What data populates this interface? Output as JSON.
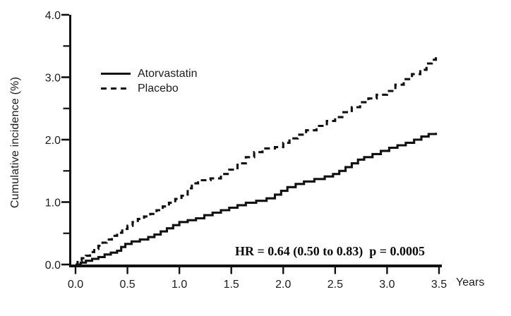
{
  "figure": {
    "y_axis_label": "Cumulative incidence (%)",
    "x_axis_unit": "Years",
    "annotation": "HR = 0.64 (0.50 to 0.83)  p = 0.0005",
    "legend": [
      {
        "label": "Atorvastatin",
        "style": "solid"
      },
      {
        "label": "Placebo",
        "style": "dashed"
      }
    ],
    "colors": {
      "line": "#111111",
      "text": "#1c1c1c",
      "background": "#ffffff"
    }
  },
  "chart_data": {
    "type": "line",
    "subtype": "step-cumulative-incidence",
    "title": "",
    "xlabel": "Years",
    "ylabel": "Cumulative incidence (%)",
    "xlim": [
      0,
      3.5
    ],
    "ylim": [
      0,
      4.0
    ],
    "grid": false,
    "legend_position": "upper-left-inside",
    "annotation": "HR = 0.64 (0.50 to 0.83)  p = 0.0005",
    "x_ticks": [
      [
        0,
        "0.0"
      ],
      [
        0.5,
        "0.5"
      ],
      [
        1,
        "1.0"
      ],
      [
        1.5,
        "1.5"
      ],
      [
        2,
        "2.0"
      ],
      [
        2.5,
        "2.5"
      ],
      [
        3,
        "3.0"
      ],
      [
        3.5,
        "3.5"
      ]
    ],
    "y_ticks": [
      [
        0,
        "0.0"
      ],
      [
        1,
        "1.0"
      ],
      [
        2,
        "2.0"
      ],
      [
        3,
        "3.0"
      ],
      [
        4,
        "4.0"
      ]
    ],
    "y_minor_ticks": [
      0.5,
      1.5,
      2.5,
      3.5
    ],
    "series": [
      {
        "name": "Atorvastatin",
        "style": "solid",
        "points": [
          [
            0.0,
            0.0
          ],
          [
            0.05,
            0.03
          ],
          [
            0.1,
            0.06
          ],
          [
            0.16,
            0.09
          ],
          [
            0.22,
            0.12
          ],
          [
            0.28,
            0.16
          ],
          [
            0.34,
            0.19
          ],
          [
            0.4,
            0.22
          ],
          [
            0.44,
            0.28
          ],
          [
            0.48,
            0.33
          ],
          [
            0.54,
            0.37
          ],
          [
            0.62,
            0.4
          ],
          [
            0.7,
            0.44
          ],
          [
            0.76,
            0.48
          ],
          [
            0.82,
            0.53
          ],
          [
            0.88,
            0.58
          ],
          [
            0.94,
            0.63
          ],
          [
            1.0,
            0.68
          ],
          [
            1.08,
            0.71
          ],
          [
            1.16,
            0.74
          ],
          [
            1.24,
            0.79
          ],
          [
            1.32,
            0.83
          ],
          [
            1.4,
            0.87
          ],
          [
            1.48,
            0.91
          ],
          [
            1.56,
            0.95
          ],
          [
            1.64,
            0.99
          ],
          [
            1.74,
            1.02
          ],
          [
            1.84,
            1.06
          ],
          [
            1.92,
            1.12
          ],
          [
            1.98,
            1.18
          ],
          [
            2.04,
            1.24
          ],
          [
            2.12,
            1.29
          ],
          [
            2.2,
            1.33
          ],
          [
            2.3,
            1.37
          ],
          [
            2.4,
            1.41
          ],
          [
            2.48,
            1.45
          ],
          [
            2.54,
            1.5
          ],
          [
            2.6,
            1.56
          ],
          [
            2.66,
            1.62
          ],
          [
            2.72,
            1.68
          ],
          [
            2.78,
            1.72
          ],
          [
            2.86,
            1.77
          ],
          [
            2.94,
            1.82
          ],
          [
            3.02,
            1.87
          ],
          [
            3.1,
            1.91
          ],
          [
            3.18,
            1.95
          ],
          [
            3.26,
            2.0
          ],
          [
            3.33,
            2.05
          ],
          [
            3.4,
            2.09
          ],
          [
            3.47,
            2.11
          ]
        ]
      },
      {
        "name": "Placebo",
        "style": "dashed",
        "points": [
          [
            0.0,
            0.0
          ],
          [
            0.02,
            0.06
          ],
          [
            0.06,
            0.1
          ],
          [
            0.1,
            0.14
          ],
          [
            0.14,
            0.2
          ],
          [
            0.18,
            0.25
          ],
          [
            0.22,
            0.3
          ],
          [
            0.26,
            0.35
          ],
          [
            0.3,
            0.4
          ],
          [
            0.35,
            0.46
          ],
          [
            0.4,
            0.51
          ],
          [
            0.45,
            0.57
          ],
          [
            0.5,
            0.62
          ],
          [
            0.55,
            0.68
          ],
          [
            0.6,
            0.73
          ],
          [
            0.66,
            0.77
          ],
          [
            0.72,
            0.81
          ],
          [
            0.78,
            0.87
          ],
          [
            0.84,
            0.93
          ],
          [
            0.9,
            0.99
          ],
          [
            0.96,
            1.05
          ],
          [
            1.02,
            1.1
          ],
          [
            1.08,
            1.22
          ],
          [
            1.12,
            1.3
          ],
          [
            1.18,
            1.35
          ],
          [
            1.3,
            1.38
          ],
          [
            1.4,
            1.45
          ],
          [
            1.48,
            1.52
          ],
          [
            1.56,
            1.62
          ],
          [
            1.64,
            1.72
          ],
          [
            1.72,
            1.8
          ],
          [
            1.8,
            1.86
          ],
          [
            1.92,
            1.88
          ],
          [
            2.0,
            1.95
          ],
          [
            2.06,
            2.02
          ],
          [
            2.14,
            2.08
          ],
          [
            2.22,
            2.15
          ],
          [
            2.32,
            2.22
          ],
          [
            2.42,
            2.3
          ],
          [
            2.5,
            2.36
          ],
          [
            2.58,
            2.44
          ],
          [
            2.66,
            2.52
          ],
          [
            2.74,
            2.6
          ],
          [
            2.82,
            2.66
          ],
          [
            2.9,
            2.72
          ],
          [
            3.0,
            2.78
          ],
          [
            3.08,
            2.88
          ],
          [
            3.16,
            2.97
          ],
          [
            3.24,
            3.05
          ],
          [
            3.32,
            3.12
          ],
          [
            3.38,
            3.22
          ],
          [
            3.43,
            3.28
          ],
          [
            3.47,
            3.35
          ]
        ]
      }
    ]
  }
}
